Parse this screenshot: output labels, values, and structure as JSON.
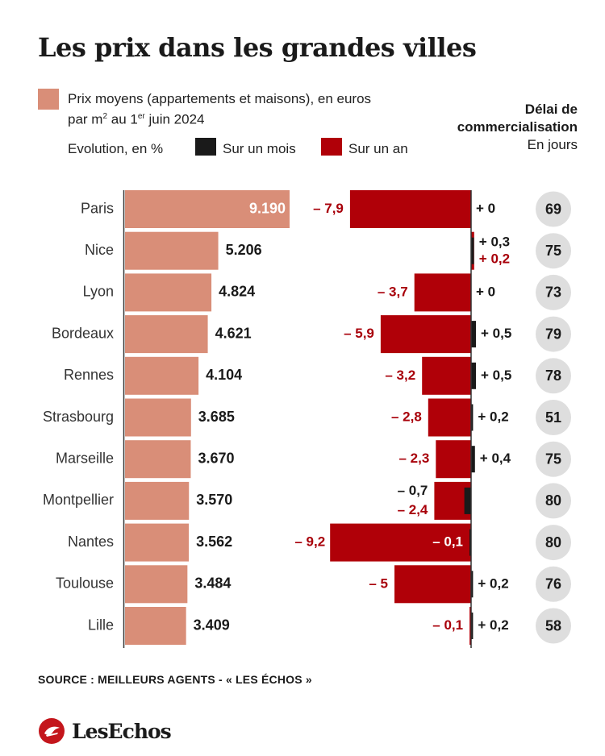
{
  "title": "Les prix dans les grandes villes",
  "legend": {
    "price_line1": "Prix moyens (appartements et maisons), en euros",
    "price_line2_pre": "par m",
    "price_line2_sup1": "2",
    "price_line2_mid": " au 1",
    "price_line2_sup2": "er",
    "price_line2_post": " juin 2024",
    "evolution_label": "Evolution, en %",
    "month_label": "Sur un mois",
    "year_label": "Sur un an"
  },
  "delai": {
    "line1": "Délai de",
    "line2": "commercialisation",
    "line3": "En jours"
  },
  "source": "SOURCE : MEILLEURS AGENTS - « LES ÉCHOS »",
  "logo_text": "LesEchos",
  "colors": {
    "price": "#d98e78",
    "month": "#1a1a1a",
    "year": "#b00008",
    "year_label": "#a8000a",
    "circle": "#dedede",
    "axis": "#333333"
  },
  "chart_data": {
    "type": "bar",
    "categories": [
      "Paris",
      "Nice",
      "Lyon",
      "Bordeaux",
      "Rennes",
      "Strasbourg",
      "Marseille",
      "Montpellier",
      "Nantes",
      "Toulouse",
      "Lille"
    ],
    "series": [
      {
        "name": "Prix moyens (appartements et maisons), en euros par m2 au 1er juin 2024",
        "values": [
          9190,
          5206,
          4824,
          4621,
          4104,
          3685,
          3670,
          3570,
          3562,
          3484,
          3409
        ],
        "labels": [
          "9.190",
          "5.206",
          "4.824",
          "4.621",
          "4.104",
          "3.685",
          "3.670",
          "3.570",
          "3.562",
          "3.484",
          "3.409"
        ]
      },
      {
        "name": "Sur un mois",
        "values": [
          0,
          0.3,
          0,
          0.5,
          0.5,
          0.2,
          0.4,
          -0.7,
          -0.1,
          0.2,
          0.2
        ],
        "labels": [
          "+ 0",
          "+ 0,3",
          "+ 0",
          "+ 0,5",
          "+ 0,5",
          "+ 0,2",
          "+ 0,4",
          "– 0,7",
          "– 0,1",
          "+ 0,2",
          "+ 0,2"
        ]
      },
      {
        "name": "Sur un an",
        "values": [
          -7.9,
          0.2,
          -3.7,
          -5.9,
          -3.2,
          -2.8,
          -2.3,
          -2.4,
          -9.2,
          -5,
          -0.1
        ],
        "labels": [
          "– 7,9",
          "+ 0,2",
          "– 3,7",
          "– 5,9",
          "– 3,2",
          "– 2,8",
          "– 2,3",
          "– 2,4",
          "– 9,2",
          "– 5",
          "– 0,1"
        ]
      },
      {
        "name": "Délai de commercialisation",
        "values": [
          69,
          75,
          73,
          79,
          78,
          51,
          75,
          80,
          80,
          76,
          58
        ],
        "labels": [
          "69",
          "75",
          "73",
          "79",
          "78",
          "51",
          "75",
          "80",
          "80",
          "76",
          "58"
        ]
      }
    ]
  }
}
